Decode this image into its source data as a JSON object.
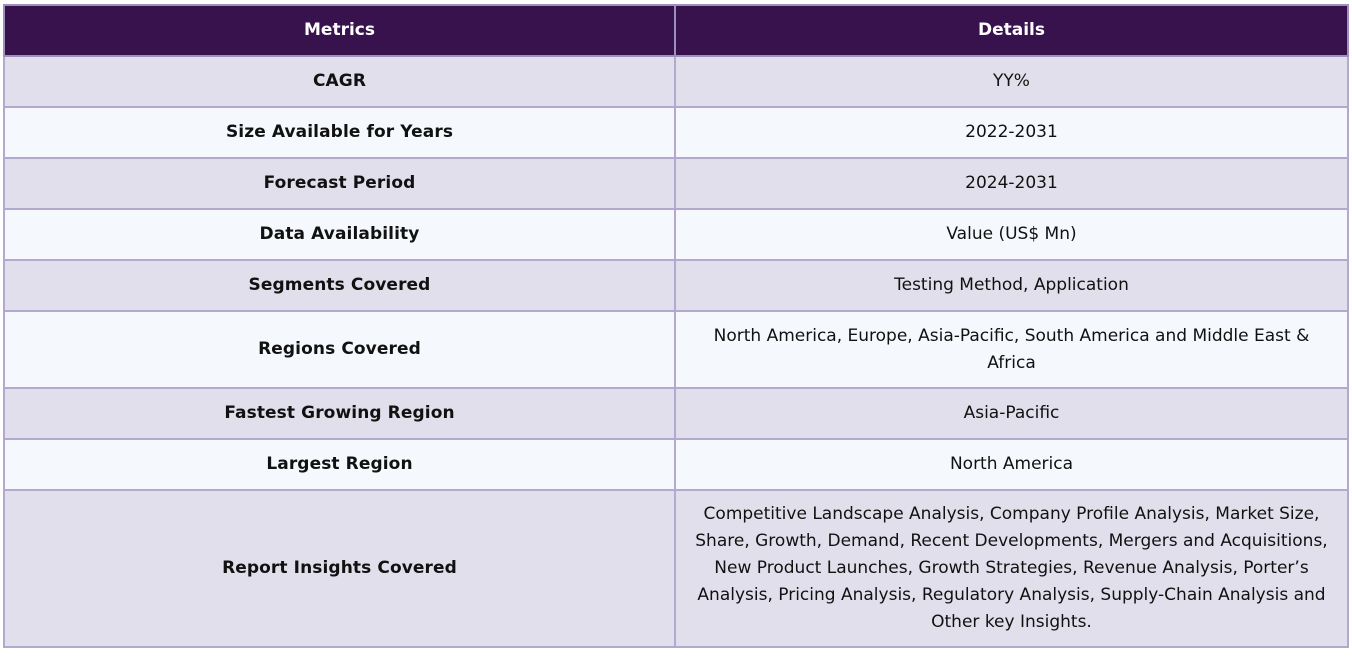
{
  "table": {
    "headers": {
      "metric": "Metrics",
      "details": "Details"
    },
    "rows": [
      {
        "metric": "CAGR",
        "details": "YY%"
      },
      {
        "metric": "Size Available for Years",
        "details": "2022-2031"
      },
      {
        "metric": "Forecast Period",
        "details": "2024-2031"
      },
      {
        "metric": "Data Availability",
        "details": "Value (US$ Mn)"
      },
      {
        "metric": "Segments Covered",
        "details": "Testing Method, Application"
      },
      {
        "metric": "Regions Covered",
        "details": "North America, Europe, Asia-Pacific, South America and Middle East & Africa"
      },
      {
        "metric": "Fastest Growing Region",
        "details": "Asia-Pacific"
      },
      {
        "metric": "Largest Region",
        "details": "North America"
      },
      {
        "metric": "Report Insights Covered",
        "details": "Competitive Landscape Analysis, Company Profile Analysis, Market Size, Share, Growth, Demand, Recent Developments, Mergers and Acquisitions, New Product Launches, Growth Strategies, Revenue Analysis, Porter’s Analysis, Pricing Analysis, Regulatory Analysis, Supply-Chain Analysis and Other key Insights."
      }
    ]
  },
  "colors": {
    "header_bg": "#38124c",
    "header_text": "#ffffff",
    "row_odd_bg": "#e2dfec",
    "row_even_bg": "#f5f9fd",
    "border": "#b3a9cf"
  }
}
